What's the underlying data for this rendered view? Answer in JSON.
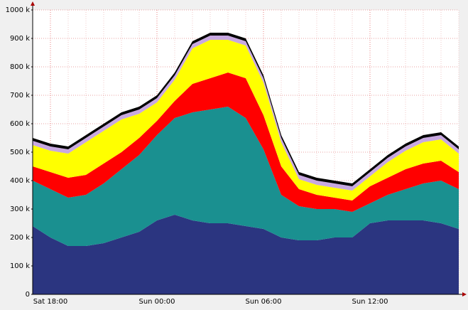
{
  "chart_data": {
    "type": "stacked-area",
    "x": [
      "Sat 17:00",
      "Sat 18:00",
      "Sat 19:00",
      "Sat 20:00",
      "Sat 21:00",
      "Sat 22:00",
      "Sat 23:00",
      "Sun 00:00",
      "Sun 01:00",
      "Sun 02:00",
      "Sun 03:00",
      "Sun 04:00",
      "Sun 05:00",
      "Sun 06:00",
      "Sun 07:00",
      "Sun 08:00",
      "Sun 09:00",
      "Sun 10:00",
      "Sun 11:00",
      "Sun 12:00",
      "Sun 13:00",
      "Sun 14:00",
      "Sun 15:00",
      "Sun 16:00",
      "Sun 17:00"
    ],
    "xticks": [
      "Sat 18:00",
      "Sun 00:00",
      "Sun 06:00",
      "Sun 12:00"
    ],
    "series": [
      {
        "color": "#2b3580",
        "values": [
          240,
          200,
          170,
          170,
          180,
          200,
          220,
          260,
          280,
          260,
          250,
          250,
          240,
          230,
          200,
          190,
          190,
          200,
          200,
          250,
          260,
          260,
          260,
          250,
          230
        ]
      },
      {
        "color": "#1a9090",
        "values": [
          160,
          170,
          170,
          180,
          210,
          240,
          270,
          300,
          340,
          380,
          400,
          410,
          380,
          280,
          150,
          120,
          110,
          100,
          90,
          70,
          90,
          110,
          130,
          150,
          140
        ]
      },
      {
        "color": "#ff0000",
        "values": [
          50,
          60,
          70,
          70,
          70,
          60,
          60,
          50,
          60,
          100,
          110,
          120,
          140,
          120,
          100,
          60,
          50,
          40,
          40,
          60,
          60,
          70,
          70,
          70,
          60
        ]
      },
      {
        "color": "#ffff00",
        "values": [
          75,
          75,
          85,
          115,
          115,
          115,
          85,
          65,
          75,
          125,
          135,
          115,
          115,
          115,
          85,
          35,
          35,
          35,
          35,
          35,
          55,
          65,
          75,
          75,
          65
        ]
      },
      {
        "color": "#c8a8e0",
        "values": [
          15,
          15,
          15,
          15,
          15,
          15,
          15,
          15,
          15,
          15,
          15,
          15,
          15,
          15,
          15,
          15,
          15,
          15,
          15,
          15,
          15,
          15,
          15,
          15,
          15
        ]
      },
      {
        "color": "#000000",
        "values": [
          10,
          10,
          10,
          10,
          10,
          10,
          10,
          10,
          10,
          10,
          10,
          10,
          10,
          10,
          10,
          10,
          10,
          10,
          10,
          10,
          10,
          10,
          10,
          10,
          10
        ]
      }
    ],
    "ylim": [
      0,
      1000
    ],
    "yticks": [
      0,
      {
        "value": 100,
        "label": "100 k"
      },
      {
        "value": 200,
        "label": "200 k"
      },
      {
        "value": 300,
        "label": "300 k"
      },
      {
        "value": 400,
        "label": "400 k"
      },
      {
        "value": 500,
        "label": "500 k"
      },
      {
        "value": 600,
        "label": "600 k"
      },
      {
        "value": 700,
        "label": "700 k"
      },
      {
        "value": 800,
        "label": "800 k"
      },
      {
        "value": 900,
        "label": "900 k"
      },
      {
        "value": 1000,
        "label": "1000 k"
      }
    ],
    "grid": true
  }
}
